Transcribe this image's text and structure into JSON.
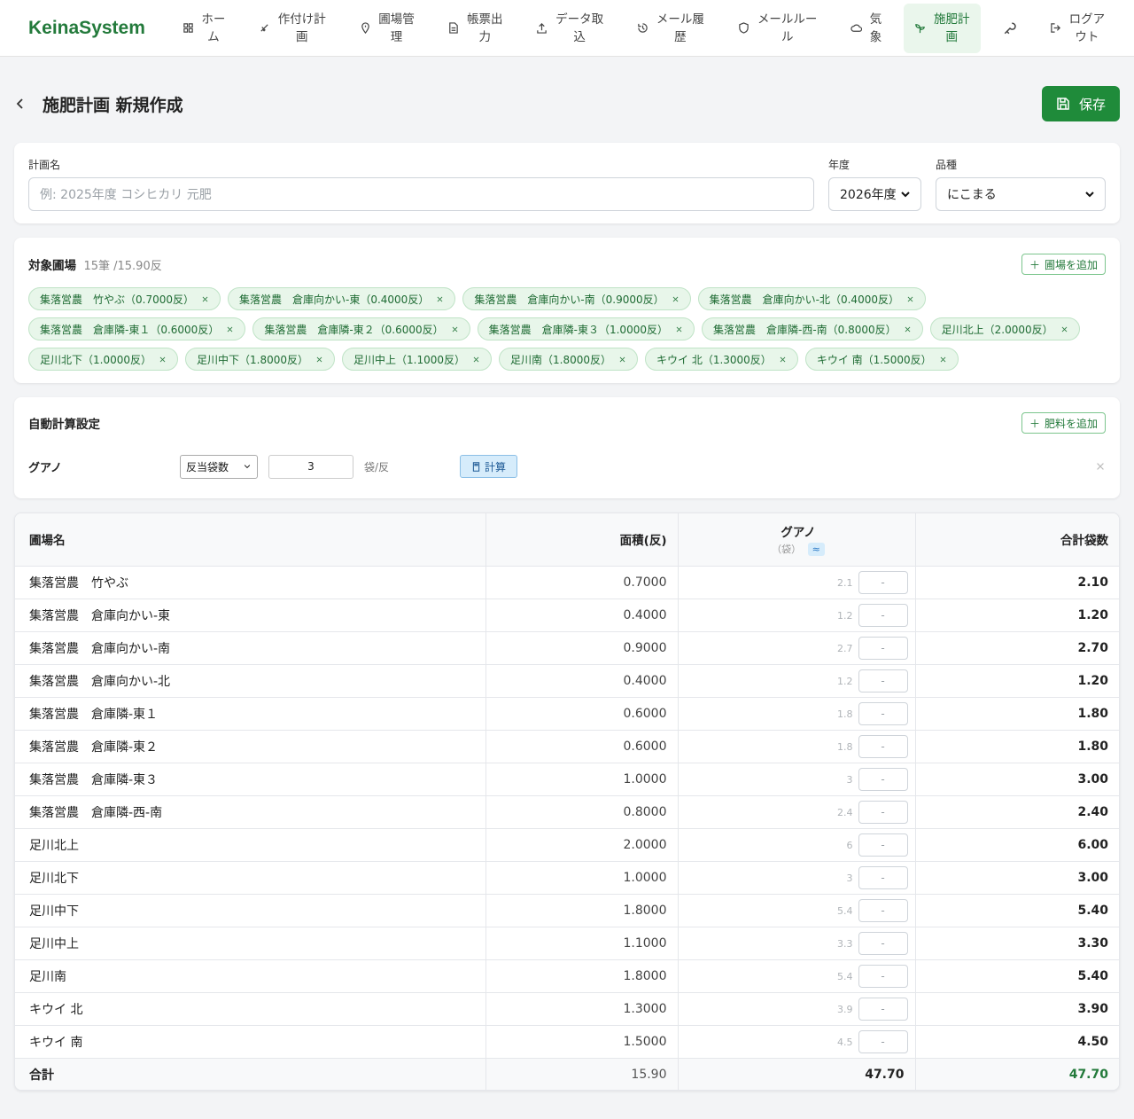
{
  "nav": {
    "brand": "KeinaSystem",
    "items": [
      "ホーム",
      "作付け計画",
      "圃場管理",
      "帳票出力",
      "データ取込",
      "メール履歴",
      "メールルール",
      "気象",
      "施肥計画",
      "ログアウト"
    ],
    "active": 8
  },
  "header": {
    "title": "施肥計画 新規作成",
    "save": "保存"
  },
  "form": {
    "plan_name_label": "計画名",
    "plan_name_placeholder": "例: 2025年度 コシヒカリ 元肥",
    "year_label": "年度",
    "year_value": "2026年度",
    "variety_label": "品種",
    "variety_value": "にこまる"
  },
  "fields": {
    "title": "対象圃場",
    "summary": "15筆 /15.90反",
    "add_button": "圃場を追加",
    "chips": [
      "集落営農　竹やぶ（0.7000反）",
      "集落営農　倉庫向かい-東（0.4000反）",
      "集落営農　倉庫向かい-南（0.9000反）",
      "集落営農　倉庫向かい-北（0.4000反）",
      "集落営農　倉庫隣-東１（0.6000反）",
      "集落営農　倉庫隣-東２（0.6000反）",
      "集落営農　倉庫隣-東３（1.0000反）",
      "集落営農　倉庫隣-西-南（0.8000反）",
      "足川北上（2.0000反）",
      "足川北下（1.0000反）",
      "足川中下（1.8000反）",
      "足川中上（1.1000反）",
      "足川南（1.8000反）",
      "キウイ 北（1.3000反）",
      "キウイ 南（1.5000反）"
    ]
  },
  "auto": {
    "title": "自動計算設定",
    "add_button": "肥料を追加",
    "rows": [
      {
        "fertilizer": "グアノ",
        "method": "反当袋数",
        "amount": "3",
        "unit": "袋/反",
        "calc": "計算"
      }
    ]
  },
  "table": {
    "headers": {
      "name": "圃場名",
      "area": "面積(反)",
      "fertilizer": "グアノ",
      "fertilizer_unit": "（袋）",
      "approx": "≈",
      "total": "合計袋数"
    },
    "input_placeholder": "-",
    "rows": [
      [
        "集落営農　竹やぶ",
        "0.7000",
        "2.1",
        "2.10"
      ],
      [
        "集落営農　倉庫向かい-東",
        "0.4000",
        "1.2",
        "1.20"
      ],
      [
        "集落営農　倉庫向かい-南",
        "0.9000",
        "2.7",
        "2.70"
      ],
      [
        "集落営農　倉庫向かい-北",
        "0.4000",
        "1.2",
        "1.20"
      ],
      [
        "集落営農　倉庫隣-東１",
        "0.6000",
        "1.8",
        "1.80"
      ],
      [
        "集落営農　倉庫隣-東２",
        "0.6000",
        "1.8",
        "1.80"
      ],
      [
        "集落営農　倉庫隣-東３",
        "1.0000",
        "3",
        "3.00"
      ],
      [
        "集落営農　倉庫隣-西-南",
        "0.8000",
        "2.4",
        "2.40"
      ],
      [
        "足川北上",
        "2.0000",
        "6",
        "6.00"
      ],
      [
        "足川北下",
        "1.0000",
        "3",
        "3.00"
      ],
      [
        "足川中下",
        "1.8000",
        "5.4",
        "5.40"
      ],
      [
        "足川中上",
        "1.1000",
        "3.3",
        "3.30"
      ],
      [
        "足川南",
        "1.8000",
        "5.4",
        "5.40"
      ],
      [
        "キウイ 北",
        "1.3000",
        "3.9",
        "3.90"
      ],
      [
        "キウイ 南",
        "1.5000",
        "4.5",
        "4.50"
      ]
    ],
    "footer": {
      "label": "合計",
      "area": "15.90",
      "fertilizer": "47.70",
      "total": "47.70"
    }
  }
}
